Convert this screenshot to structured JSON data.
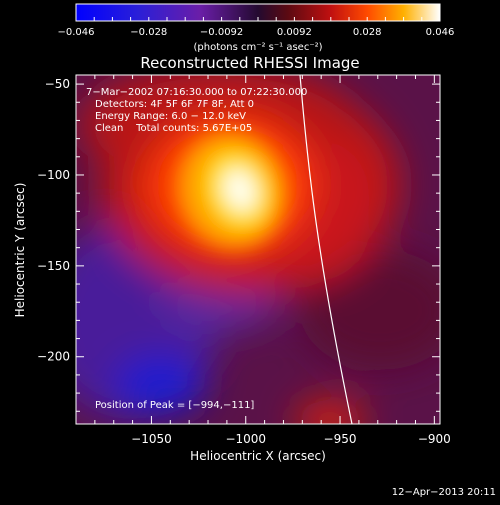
{
  "colorbar": {
    "tick_labels": [
      "−0.046",
      "−0.028",
      "−0.0092",
      "0.0092",
      "0.028",
      "0.046"
    ],
    "units": "(photons cm⁻² s⁻¹ asec⁻²)",
    "range": [
      -0.046,
      0.046
    ]
  },
  "chart_data": {
    "type": "heatmap",
    "title": "Reconstructed RHESSI Image",
    "xlabel": "Heliocentric X (arcsec)",
    "ylabel": "Heliocentric Y (arcsec)",
    "xlim": [
      -1090,
      -897
    ],
    "ylim": [
      -237,
      -45
    ],
    "xticks": [
      -1050,
      -1000,
      -950,
      -900
    ],
    "yticks": [
      -50,
      -100,
      -150,
      -200
    ],
    "xtick_labels": [
      "−1050",
      "−1000",
      "−950",
      "−900"
    ],
    "ytick_labels": [
      "−50",
      "−100",
      "−150",
      "−200"
    ],
    "peak": [
      -994,
      -111
    ],
    "annotations": [
      "7−Mar−2002 07:16:30.000 to 07:22:30.000",
      "Detectors: 4F 5F 6F 7F 8F, Att 0",
      "Energy Range: 6.0 − 12.0 keV",
      "Clean    Total counts: 5.67E+05"
    ],
    "peak_label": "Position of Peak = [−994,−111]"
  },
  "footer": {
    "timestamp": "12−Apr−2013 20:11"
  }
}
